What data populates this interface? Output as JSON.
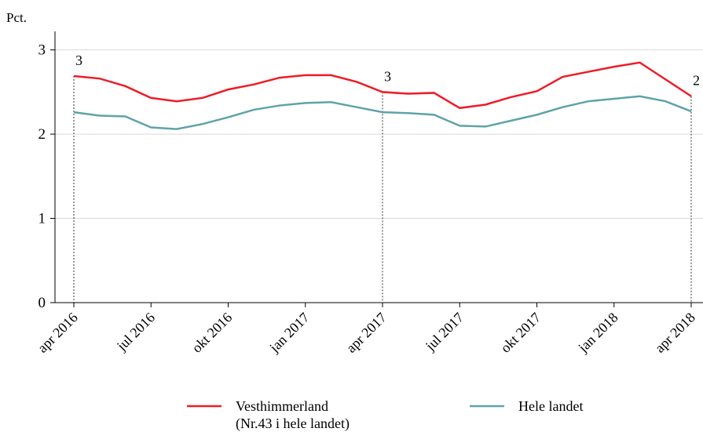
{
  "chart_data": {
    "type": "line",
    "y_label": "Pct.",
    "categories": [
      "apr 2016",
      null,
      null,
      "jul 2016",
      null,
      null,
      "okt 2016",
      null,
      null,
      "jan 2017",
      null,
      null,
      "apr 2017",
      null,
      null,
      "jul 2017",
      null,
      null,
      "okt 2017",
      null,
      null,
      "jan 2018",
      null,
      null,
      "apr 2018"
    ],
    "series": [
      {
        "name": "Vesthimmerland",
        "legend_note": "(Nr.43 i hele landet)",
        "color": "#ee1c25",
        "values": [
          2.69,
          2.66,
          2.57,
          2.43,
          2.39,
          2.43,
          2.53,
          2.59,
          2.67,
          2.7,
          2.7,
          2.62,
          2.5,
          2.48,
          2.49,
          2.31,
          2.35,
          2.44,
          2.51,
          2.68,
          2.74,
          2.8,
          2.85,
          2.65,
          2.45
        ]
      },
      {
        "name": "Hele landet",
        "color": "#5fa3a8",
        "values": [
          2.26,
          2.22,
          2.21,
          2.08,
          2.06,
          2.12,
          2.2,
          2.29,
          2.34,
          2.37,
          2.38,
          2.32,
          2.26,
          2.25,
          2.23,
          2.1,
          2.09,
          2.16,
          2.23,
          2.32,
          2.39,
          2.42,
          2.45,
          2.39,
          2.27
        ]
      }
    ],
    "annotations": [
      {
        "label": "3",
        "x": "apr 2016"
      },
      {
        "label": "3",
        "x": "apr 2017"
      },
      {
        "label": "2",
        "x": "apr 2018"
      }
    ],
    "ylim": [
      0,
      3.22
    ],
    "yticks": [
      0,
      1,
      2,
      3
    ],
    "grid": true
  }
}
